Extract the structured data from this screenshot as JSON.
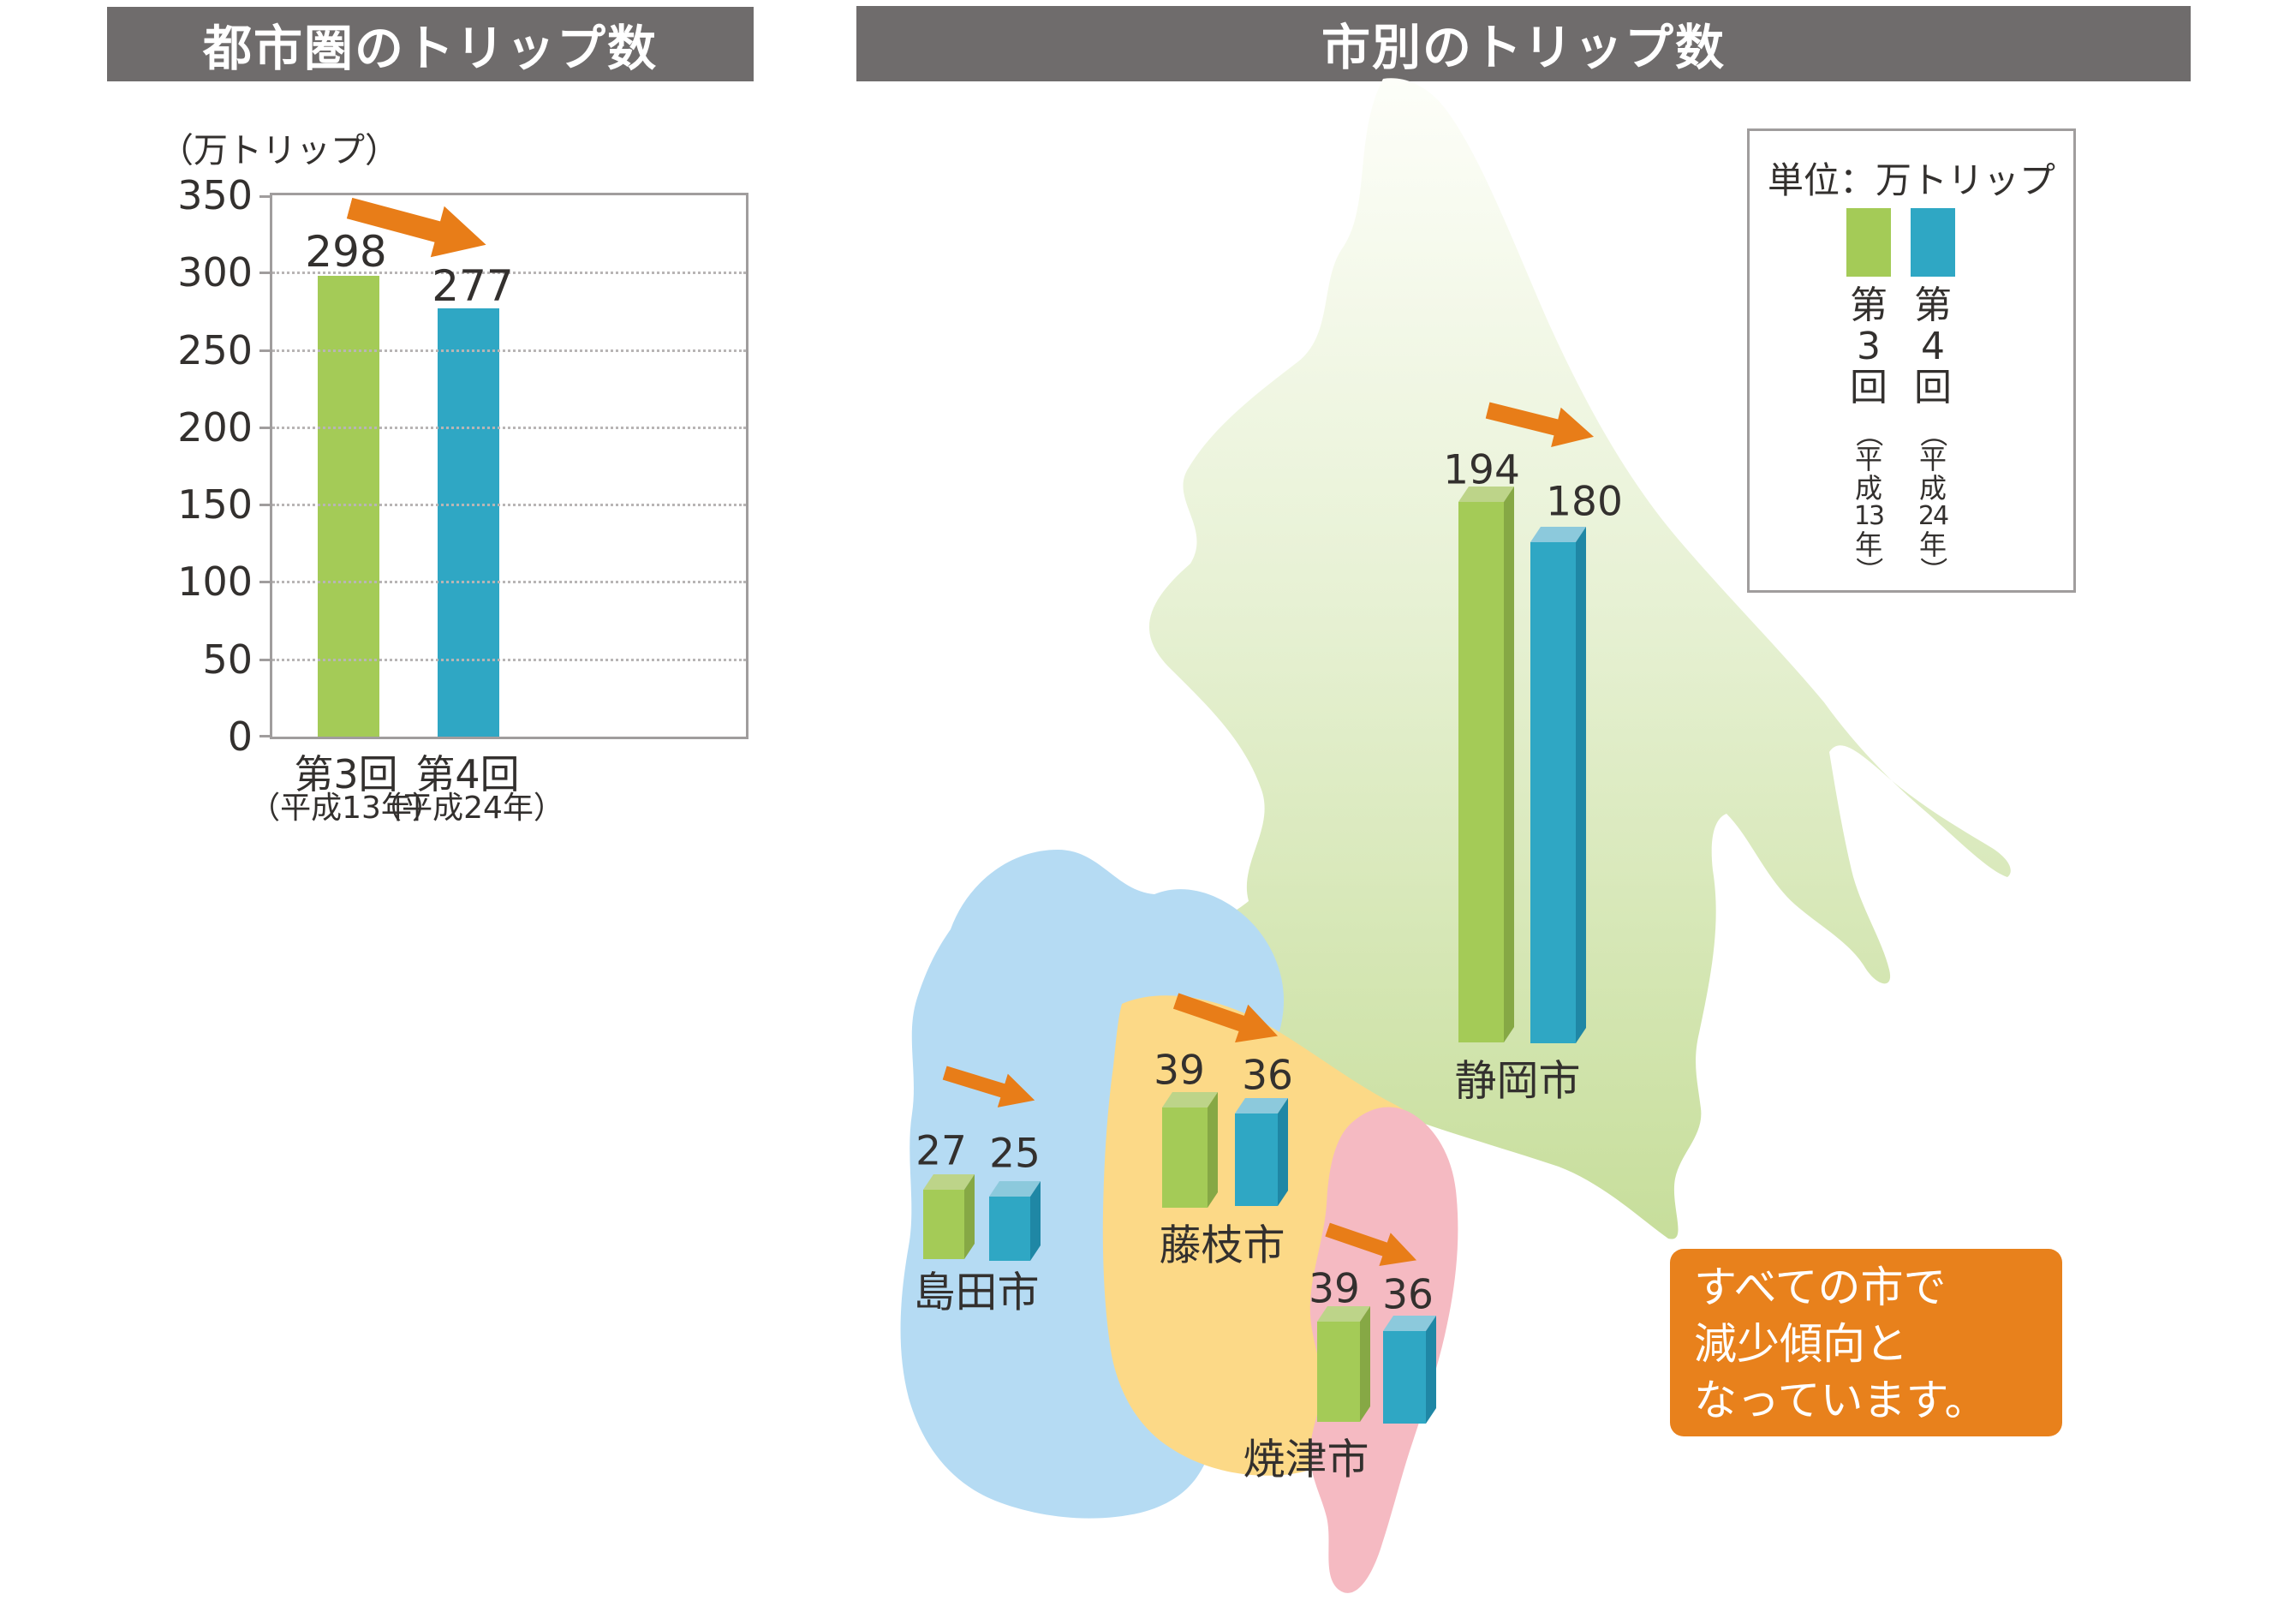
{
  "left_panel": {
    "header": "都市圏のトリップ数"
  },
  "right_panel": {
    "header": "市別のトリップ数",
    "legend": {
      "title": "単位：万トリップ",
      "columns": [
        {
          "main": [
            "第",
            "3",
            "回"
          ],
          "sub": [
            "（",
            "平",
            "成",
            "13",
            "年",
            "）"
          ]
        },
        {
          "main": [
            "第",
            "4",
            "回"
          ],
          "sub": [
            "（",
            "平",
            "成",
            "24",
            "年",
            "）"
          ]
        }
      ]
    },
    "callout": {
      "lines": [
        "すべての市で",
        "減少傾向と",
        "なっています。"
      ]
    }
  },
  "chart_data": [
    {
      "type": "bar",
      "title": "都市圏のトリップ数",
      "unit": "（万トリップ）",
      "categories": [
        "第3回",
        "第4回"
      ],
      "category_subs": [
        "（平成13年）",
        "（平成24年）"
      ],
      "values": [
        298,
        277
      ],
      "ylim": [
        0,
        350
      ],
      "yticks": [
        0,
        50,
        100,
        150,
        200,
        250,
        300,
        350
      ],
      "grid": "dotted-horizontal",
      "annotation": "decline-arrow"
    },
    {
      "type": "bar",
      "title": "市別のトリップ数",
      "unit": "単位：万トリップ",
      "layout": "map-overlay-3d",
      "categories": [
        "静岡市",
        "島田市",
        "藤枝市",
        "焼津市"
      ],
      "series": [
        {
          "name": "第3回（平成13年）",
          "values": [
            194,
            27,
            39,
            39
          ]
        },
        {
          "name": "第4回（平成24年）",
          "values": [
            180,
            25,
            36,
            36
          ]
        }
      ],
      "annotation": "すべての市で減少傾向となっています。"
    }
  ],
  "colors": {
    "header_bg": "#6f6c6c",
    "header_text": "#ffffff",
    "series1_front": "#a4cb57",
    "series1_side": "#86a845",
    "series1_top": "#bdd489",
    "series2_front": "#2fa7c4",
    "series2_side": "#1f87a5",
    "series2_top": "#8cc9dc",
    "arrow_orange": "#e87d18",
    "callout_bg": "#e8811c",
    "map_green_light": "#fcfef8",
    "map_green": "#c7de9b",
    "map_blue": "#b5dbf3",
    "map_yellow": "#fcd987",
    "map_pink": "#f5bac2",
    "frame_gray": "#a09d9d",
    "grid_gray": "#b8b5b5",
    "text_dark": "#33302e"
  }
}
